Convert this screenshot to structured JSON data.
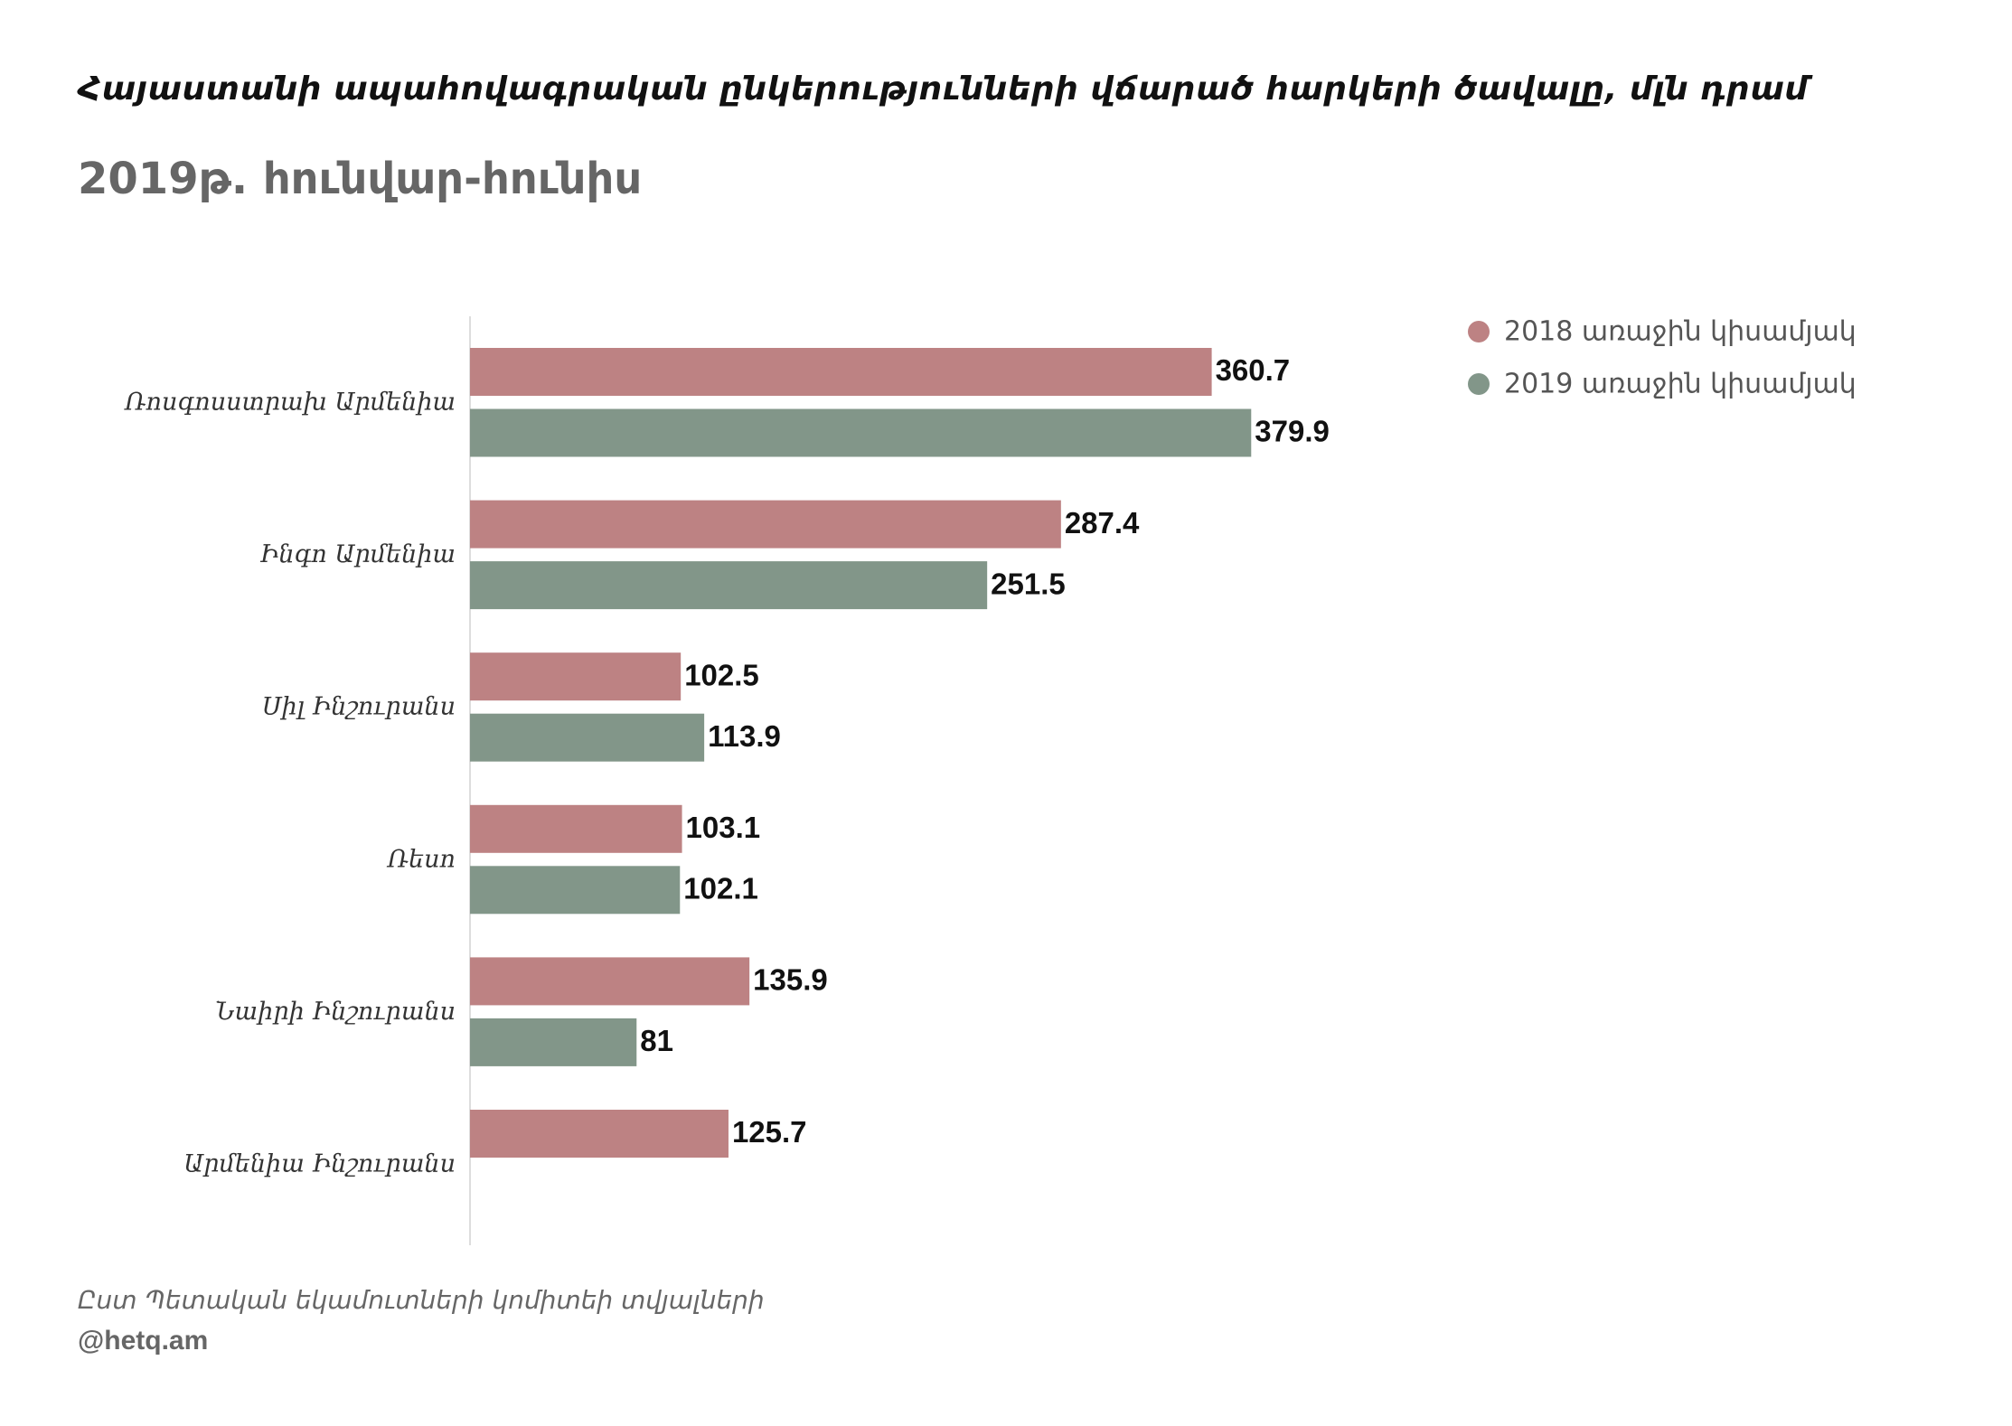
{
  "title": "Հայաստանի ապահովագրական ընկերությունների վճարած հարկերի ծավալը, մլն դրամ",
  "subtitle": "2019թ. հունվար-հունիս",
  "footer": {
    "source": "Ըստ Պետական եկամուտների կոմիտեի տվյալների",
    "credit": "@hetq.am"
  },
  "colors": {
    "series_2018": "#bd8283",
    "series_2019": "#829689",
    "axis": "#dddddd"
  },
  "chart_data": {
    "type": "bar",
    "orientation": "horizontal",
    "categories": [
      "Ռոսգոսստրախ Արմենիա",
      "Ինգո Արմենիա",
      "Սիլ Ինշուրանս",
      "Ռեսո",
      "Նաիրի Ինշուրանս",
      "Արմենիա Ինշուրանս"
    ],
    "series": [
      {
        "name": "2018 առաջին կիսամյակ",
        "values": [
          360.7,
          287.4,
          102.5,
          103.1,
          135.9,
          125.7
        ],
        "labels": [
          "360.7",
          "287.4",
          "102.5",
          "103.1",
          "135.9",
          "125.7"
        ]
      },
      {
        "name": "2019 առաջին կիսամյակ",
        "values": [
          379.9,
          251.5,
          113.9,
          102.1,
          81,
          null
        ],
        "labels": [
          "379.9",
          "251.5",
          "113.9",
          "102.1",
          "81",
          null
        ]
      }
    ],
    "xlim": [
      0,
      400
    ],
    "legend_position": "top-right",
    "grid": false,
    "show_value_labels": true
  }
}
